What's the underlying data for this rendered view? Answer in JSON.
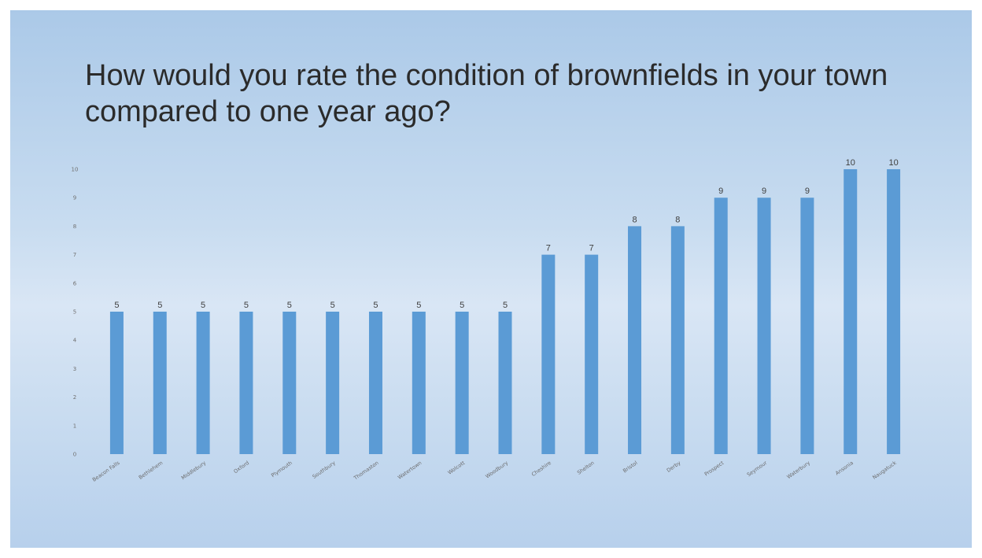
{
  "slide": {
    "title": "How would you rate the condition of brownfields  in your town compared to one year ago?"
  },
  "colors": {
    "bar": "#5b9bd5",
    "slide_top": "#abc9e8",
    "slide_bottom": "#b7d0ec"
  },
  "chart_data": {
    "type": "bar",
    "title": "",
    "xlabel": "",
    "ylabel": "",
    "categories": [
      "Beacon Falls",
      "Bethlehem",
      "Middlebury",
      "Oxford",
      "Plymouth",
      "Southbury",
      "Thomaston",
      "Watertown",
      "Wolcott",
      "Woodbury",
      "Cheshire",
      "Shelton",
      "Bristol",
      "Derby",
      "Prospect",
      "Seymour",
      "Waterbury",
      "Ansonia",
      "Naugatuck"
    ],
    "values": [
      5,
      5,
      5,
      5,
      5,
      5,
      5,
      5,
      5,
      5,
      7,
      7,
      8,
      8,
      9,
      9,
      9,
      10,
      10
    ],
    "ylim": [
      0,
      10
    ],
    "yticks": [
      0,
      1,
      2,
      3,
      4,
      5,
      6,
      7,
      8,
      9,
      10
    ],
    "grid": false,
    "legend": "none",
    "data_labels": true
  }
}
